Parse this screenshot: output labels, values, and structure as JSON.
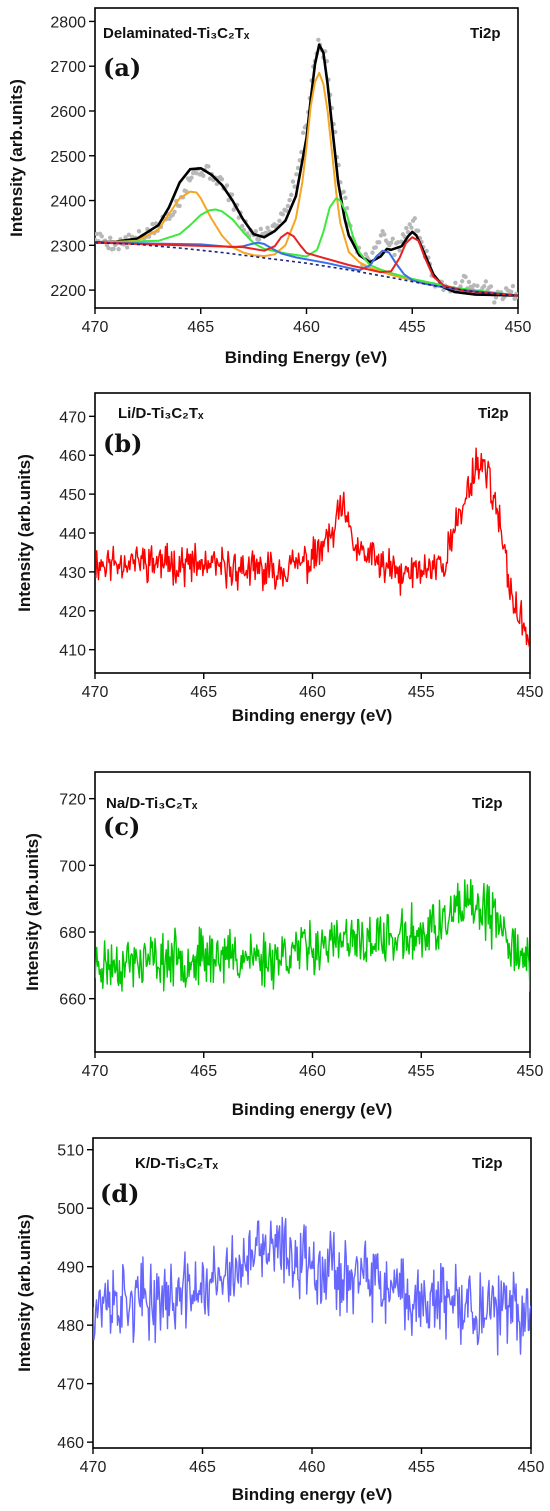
{
  "chart_data": [
    {
      "type": "line",
      "panel": "(a)",
      "sample": "Delaminated-Ti₃C₂Tₓ",
      "annotation": "Ti2p",
      "xlabel": "Binding Energy (eV)",
      "ylabel": "Intensity (arb.units)",
      "xlim": [
        470,
        450
      ],
      "ylim": [
        2160,
        2830
      ],
      "xticks": [
        470,
        465,
        460,
        455,
        450
      ],
      "yticks": [
        2200,
        2300,
        2400,
        2500,
        2600,
        2700,
        2800
      ],
      "raw_points": {
        "x": [
          470,
          469,
          468,
          467,
          466,
          465.5,
          465,
          464.5,
          464,
          463.5,
          463,
          462.5,
          462,
          461.5,
          461,
          460.5,
          460,
          459.7,
          459.4,
          459.1,
          458.8,
          458.5,
          458.2,
          457.9,
          457.6,
          457.3,
          457,
          456.7,
          456.4,
          456.1,
          455.8,
          455.5,
          455.2,
          454.9,
          454.6,
          454.3,
          454,
          453.5,
          453,
          452.5,
          452,
          451.5,
          451,
          450.5,
          450
        ],
        "y": [
          2320,
          2300,
          2315,
          2340,
          2400,
          2455,
          2470,
          2460,
          2440,
          2400,
          2345,
          2320,
          2330,
          2345,
          2380,
          2450,
          2580,
          2690,
          2760,
          2720,
          2610,
          2480,
          2400,
          2340,
          2290,
          2265,
          2270,
          2300,
          2320,
          2315,
          2290,
          2310,
          2340,
          2350,
          2320,
          2270,
          2220,
          2210,
          2205,
          2220,
          2195,
          2210,
          2180,
          2200,
          2190
        ]
      },
      "series": [
        {
          "name": "",
          "color": "#000000",
          "width": 2.6,
          "x": [
            470,
            469,
            468,
            467,
            466.5,
            466,
            465.5,
            465,
            464.5,
            464,
            463.5,
            463,
            462.5,
            462,
            461.5,
            461,
            460.5,
            460,
            459.8,
            459.6,
            459.4,
            459.2,
            459,
            458.8,
            458.5,
            458.2,
            458,
            457.5,
            457,
            456.5,
            456.2,
            456,
            455.5,
            455.2,
            455,
            454.8,
            454.5,
            454,
            453.5,
            453,
            452,
            451,
            450
          ],
          "y": [
            2306,
            2308,
            2315,
            2345,
            2385,
            2440,
            2470,
            2472,
            2458,
            2435,
            2400,
            2358,
            2325,
            2318,
            2332,
            2355,
            2410,
            2540,
            2625,
            2705,
            2748,
            2730,
            2660,
            2570,
            2440,
            2360,
            2322,
            2278,
            2262,
            2275,
            2292,
            2290,
            2298,
            2320,
            2330,
            2322,
            2290,
            2235,
            2206,
            2196,
            2190,
            2189,
            2188
          ]
        },
        {
          "name": "",
          "color": "#f5a623",
          "width": 2,
          "x": [
            470,
            468,
            467,
            466.5,
            466,
            465.5,
            465.2,
            465,
            464.5,
            464,
            463.5,
            463,
            462.5,
            462,
            461.5,
            461,
            460.5,
            460.2,
            460,
            459.8,
            459.6,
            459.4,
            459.2,
            459,
            458.8,
            458.6,
            458.4,
            458,
            457.5,
            457,
            456,
            455,
            453,
            450
          ],
          "y": [
            2306,
            2310,
            2335,
            2370,
            2405,
            2420,
            2418,
            2405,
            2360,
            2322,
            2296,
            2284,
            2278,
            2276,
            2280,
            2300,
            2360,
            2440,
            2520,
            2610,
            2665,
            2685,
            2660,
            2600,
            2510,
            2420,
            2350,
            2285,
            2262,
            2250,
            2234,
            2222,
            2202,
            2188
          ]
        },
        {
          "name": "",
          "color": "#3ee83e",
          "width": 2,
          "x": [
            470,
            467,
            466,
            465.5,
            465,
            464.6,
            464.3,
            464,
            463.5,
            463,
            462.5,
            462,
            461,
            460,
            459.5,
            459.2,
            458.9,
            458.6,
            458.4,
            458.1,
            457.8,
            457.5,
            457,
            456.5,
            456,
            455,
            453,
            450
          ],
          "y": [
            2306,
            2310,
            2325,
            2345,
            2368,
            2378,
            2380,
            2376,
            2358,
            2330,
            2305,
            2292,
            2282,
            2275,
            2290,
            2330,
            2385,
            2405,
            2400,
            2370,
            2320,
            2284,
            2256,
            2246,
            2238,
            2225,
            2205,
            2188
          ]
        },
        {
          "name": "",
          "color": "#3a6fe6",
          "width": 2,
          "x": [
            470,
            465,
            463.5,
            463,
            462.6,
            462.3,
            462,
            461.6,
            461.2,
            460.5,
            459,
            457.5,
            457,
            456.7,
            456.4,
            456.1,
            455.8,
            455.4,
            455,
            454.5,
            453,
            450
          ],
          "y": [
            2306,
            2302,
            2296,
            2298,
            2303,
            2306,
            2303,
            2292,
            2282,
            2273,
            2260,
            2244,
            2255,
            2275,
            2288,
            2284,
            2262,
            2236,
            2222,
            2215,
            2202,
            2188
          ]
        },
        {
          "name": "",
          "color": "#e62222",
          "width": 2,
          "x": [
            470,
            463,
            462,
            461.5,
            461.2,
            460.9,
            460.6,
            460.3,
            460,
            459.5,
            458,
            456.5,
            456,
            455.6,
            455.3,
            455,
            454.7,
            454.4,
            454,
            453.5,
            452.5,
            450
          ],
          "y": [
            2306,
            2296,
            2288,
            2298,
            2318,
            2328,
            2320,
            2300,
            2283,
            2276,
            2256,
            2240,
            2242,
            2272,
            2305,
            2318,
            2310,
            2272,
            2230,
            2210,
            2198,
            2188
          ]
        },
        {
          "name": "",
          "color": "#1a237e",
          "width": 1.6,
          "dash": "3,3",
          "x": [
            470,
            468,
            466,
            464,
            462,
            460,
            458,
            456,
            454,
            452,
            450
          ],
          "y": [
            2306,
            2302,
            2294,
            2284,
            2272,
            2260,
            2245,
            2228,
            2210,
            2196,
            2188
          ]
        }
      ]
    },
    {
      "type": "line",
      "panel": "(b)",
      "sample": "Li/D-Ti₃C₂Tₓ",
      "annotation": "Ti2p",
      "xlabel": "Binding energy (eV)",
      "ylabel": "Intensity (arb.units)",
      "xlim": [
        470,
        450
      ],
      "ylim": [
        404,
        476
      ],
      "xticks": [
        470,
        465,
        460,
        455,
        450
      ],
      "yticks": [
        410,
        420,
        430,
        440,
        450,
        460,
        470
      ],
      "series": [
        {
          "name": "",
          "color": "#ff0000",
          "width": 1.4,
          "x": [
            470,
            468,
            466,
            464,
            462,
            460,
            459,
            458.7,
            458,
            456,
            454,
            453,
            452.5,
            452,
            451.5,
            451,
            450.5,
            450
          ],
          "y": [
            432,
            433,
            432,
            431,
            430,
            433,
            440,
            447,
            436,
            429,
            432,
            448,
            458,
            457,
            445,
            428,
            418,
            413
          ],
          "noise": 6,
          "step": 0.04,
          "seed": 11
        }
      ]
    },
    {
      "type": "line",
      "panel": "(c)",
      "sample": "Na/D-Ti₃C₂Tₓ",
      "annotation": "Ti2p",
      "xlabel": "Binding energy (eV)",
      "ylabel": "Intensity (arb.units)",
      "xlim": [
        470,
        450
      ],
      "ylim": [
        644,
        728
      ],
      "xticks": [
        470,
        465,
        460,
        455,
        450
      ],
      "yticks": [
        660,
        680,
        700,
        720
      ],
      "series": [
        {
          "name": "",
          "color": "#00c800",
          "width": 1.4,
          "x": [
            470,
            468,
            466,
            464,
            462,
            460,
            458,
            456,
            454,
            453,
            452,
            451,
            450
          ],
          "y": [
            670,
            671,
            672,
            673,
            672,
            676,
            677,
            678,
            682,
            688,
            686,
            678,
            670
          ],
          "noise": 10,
          "step": 0.04,
          "seed": 23
        }
      ]
    },
    {
      "type": "line",
      "panel": "(d)",
      "sample": "K/D-Ti₃C₂Tₓ",
      "annotation": "Ti2p",
      "xlabel": "Binding energy (eV)",
      "ylabel": "Intensity (arb.units)",
      "xlim": [
        470,
        450
      ],
      "ylim": [
        459,
        512
      ],
      "xticks": [
        470,
        465,
        460,
        455,
        450
      ],
      "yticks": [
        460,
        470,
        480,
        490,
        500,
        510
      ],
      "series": [
        {
          "name": "",
          "color": "#6666ff",
          "width": 1.4,
          "x": [
            470,
            468,
            466,
            464,
            462,
            460,
            458,
            456,
            454,
            452,
            450
          ],
          "y": [
            484,
            484,
            485,
            488,
            493,
            491,
            488,
            485,
            484,
            482,
            482
          ],
          "noise": 8,
          "step": 0.04,
          "seed": 37
        }
      ]
    }
  ]
}
